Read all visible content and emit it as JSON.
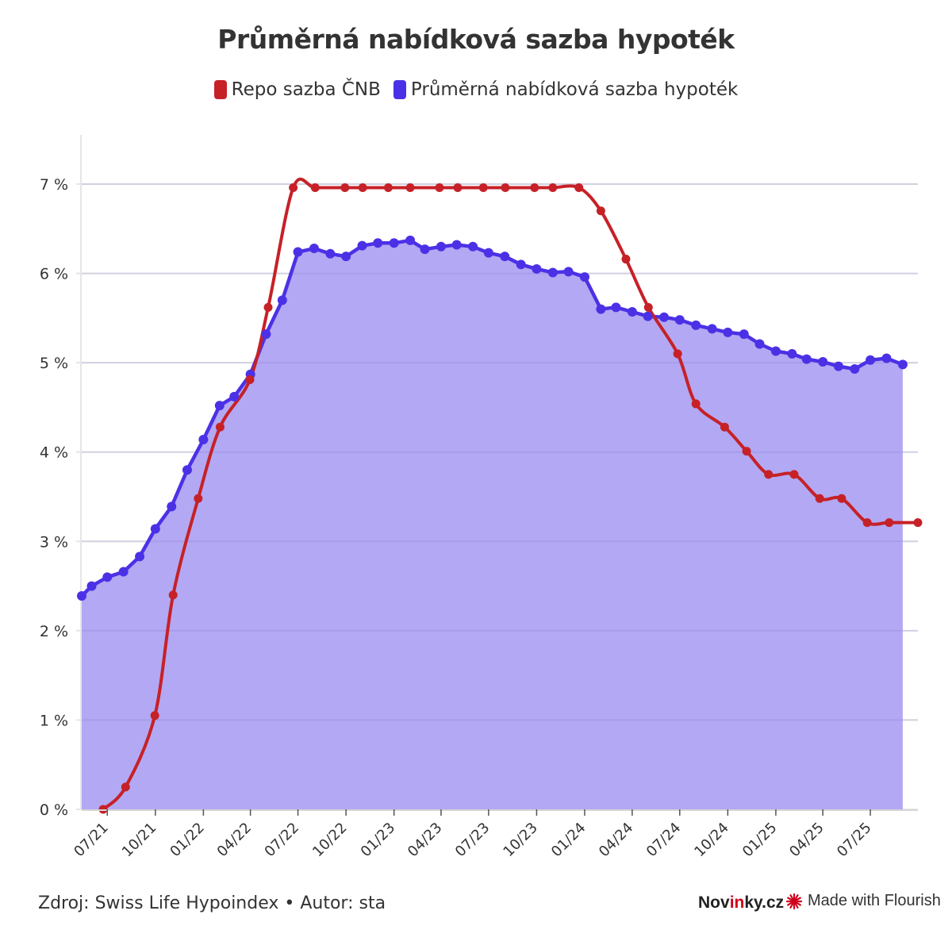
{
  "header": {
    "title": "Průměrná nabídková sazba hypoték"
  },
  "legend": {
    "items": [
      {
        "label": "Repo sazba ČNB",
        "color": "#c62127"
      },
      {
        "label": "Průměrná nabídková sazba hypoték",
        "color": "#4b31e6"
      }
    ]
  },
  "footer": {
    "source": "Zdroj: Swiss Life Hypoindex • Autor: sta",
    "brand_prefix": "Nov",
    "brand_accent": "in",
    "brand_suffix": "ky.cz",
    "made_with": "Made with Flourish"
  },
  "colors": {
    "repo": "#c62127",
    "mortgage_line": "#4b31e6",
    "mortgage_fill": "#b3a8f3",
    "flourish": "#d0021b"
  },
  "chart_data": {
    "type": "line",
    "title": "Průměrná nabídková sazba hypoték",
    "xlabel": "",
    "ylabel": "",
    "ylim": [
      0,
      7
    ],
    "yticks": [
      "0 %",
      "1 %",
      "2 %",
      "3 %",
      "4 %",
      "5 %",
      "6 %",
      "7 %"
    ],
    "x_range": [
      "2021-05-13",
      "2025-09-30"
    ],
    "xticks": [
      {
        "date": "2021-07-01",
        "label": "07/21"
      },
      {
        "date": "2021-10-01",
        "label": "10/21"
      },
      {
        "date": "2022-01-01",
        "label": "01/22"
      },
      {
        "date": "2022-04-01",
        "label": "04/22"
      },
      {
        "date": "2022-07-01",
        "label": "07/22"
      },
      {
        "date": "2022-10-01",
        "label": "10/22"
      },
      {
        "date": "2023-01-01",
        "label": "01/23"
      },
      {
        "date": "2023-04-01",
        "label": "04/23"
      },
      {
        "date": "2023-07-01",
        "label": "07/23"
      },
      {
        "date": "2023-10-01",
        "label": "10/23"
      },
      {
        "date": "2024-01-01",
        "label": "01/24"
      },
      {
        "date": "2024-04-01",
        "label": "04/24"
      },
      {
        "date": "2024-07-01",
        "label": "07/24"
      },
      {
        "date": "2024-10-01",
        "label": "10/24"
      },
      {
        "date": "2025-01-01",
        "label": "01/25"
      },
      {
        "date": "2025-04-01",
        "label": "04/25"
      },
      {
        "date": "2025-07-01",
        "label": "07/25"
      }
    ],
    "grid": true,
    "legend_position": "top-center",
    "series": [
      {
        "name": "Repo sazba ČNB",
        "type": "line",
        "points": [
          [
            "2021-06-23",
            0.0
          ],
          [
            "2021-08-05",
            0.25
          ],
          [
            "2021-09-30",
            1.05
          ],
          [
            "2021-11-04",
            2.4
          ],
          [
            "2021-12-22",
            3.48
          ],
          [
            "2022-02-02",
            4.28
          ],
          [
            "2022-03-31",
            4.81
          ],
          [
            "2022-05-05",
            5.62
          ],
          [
            "2022-06-22",
            6.96
          ],
          [
            "2022-08-03",
            6.96
          ],
          [
            "2022-09-29",
            6.96
          ],
          [
            "2022-11-02",
            6.96
          ],
          [
            "2022-12-21",
            6.96
          ],
          [
            "2023-02-01",
            6.96
          ],
          [
            "2023-03-29",
            6.96
          ],
          [
            "2023-05-03",
            6.96
          ],
          [
            "2023-06-21",
            6.96
          ],
          [
            "2023-08-02",
            6.96
          ],
          [
            "2023-09-27",
            6.96
          ],
          [
            "2023-11-01",
            6.96
          ],
          [
            "2023-12-21",
            6.96
          ],
          [
            "2024-02-01",
            6.7
          ],
          [
            "2024-03-20",
            6.16
          ],
          [
            "2024-05-02",
            5.62
          ],
          [
            "2024-06-27",
            5.1
          ],
          [
            "2024-08-01",
            4.54
          ],
          [
            "2024-09-25",
            4.28
          ],
          [
            "2024-11-06",
            4.01
          ],
          [
            "2024-12-18",
            3.75
          ],
          [
            "2025-02-05",
            3.75
          ],
          [
            "2025-03-26",
            3.48
          ],
          [
            "2025-05-07",
            3.48
          ],
          [
            "2025-06-25",
            3.21
          ],
          [
            "2025-08-06",
            3.21
          ],
          [
            "2025-09-30",
            3.21
          ]
        ]
      },
      {
        "name": "Průměrná nabídková sazba hypoték",
        "type": "area",
        "points": [
          [
            "2021-05-13",
            2.39
          ],
          [
            "2021-06-01",
            2.5
          ],
          [
            "2021-07-01",
            2.6
          ],
          [
            "2021-08-01",
            2.66
          ],
          [
            "2021-09-01",
            2.83
          ],
          [
            "2021-10-01",
            3.14
          ],
          [
            "2021-11-01",
            3.39
          ],
          [
            "2021-12-01",
            3.8
          ],
          [
            "2022-01-01",
            4.14
          ],
          [
            "2022-02-01",
            4.52
          ],
          [
            "2022-03-01",
            4.62
          ],
          [
            "2022-04-01",
            4.87
          ],
          [
            "2022-05-01",
            5.32
          ],
          [
            "2022-06-01",
            5.7
          ],
          [
            "2022-07-01",
            6.24
          ],
          [
            "2022-08-01",
            6.28
          ],
          [
            "2022-09-01",
            6.22
          ],
          [
            "2022-10-01",
            6.19
          ],
          [
            "2022-11-01",
            6.31
          ],
          [
            "2022-12-01",
            6.34
          ],
          [
            "2023-01-01",
            6.34
          ],
          [
            "2023-02-01",
            6.37
          ],
          [
            "2023-03-01",
            6.27
          ],
          [
            "2023-04-01",
            6.3
          ],
          [
            "2023-05-01",
            6.32
          ],
          [
            "2023-06-01",
            6.3
          ],
          [
            "2023-07-01",
            6.23
          ],
          [
            "2023-08-01",
            6.19
          ],
          [
            "2023-09-01",
            6.1
          ],
          [
            "2023-10-01",
            6.05
          ],
          [
            "2023-11-01",
            6.01
          ],
          [
            "2023-12-01",
            6.02
          ],
          [
            "2024-01-01",
            5.96
          ],
          [
            "2024-02-01",
            5.6
          ],
          [
            "2024-03-01",
            5.62
          ],
          [
            "2024-04-01",
            5.57
          ],
          [
            "2024-05-01",
            5.52
          ],
          [
            "2024-06-01",
            5.51
          ],
          [
            "2024-07-01",
            5.48
          ],
          [
            "2024-08-01",
            5.42
          ],
          [
            "2024-09-01",
            5.38
          ],
          [
            "2024-10-01",
            5.34
          ],
          [
            "2024-11-01",
            5.32
          ],
          [
            "2024-12-01",
            5.21
          ],
          [
            "2025-01-01",
            5.13
          ],
          [
            "2025-02-01",
            5.1
          ],
          [
            "2025-03-01",
            5.04
          ],
          [
            "2025-04-01",
            5.01
          ],
          [
            "2025-05-01",
            4.96
          ],
          [
            "2025-06-01",
            4.93
          ],
          [
            "2025-07-01",
            5.03
          ],
          [
            "2025-08-01",
            5.05
          ],
          [
            "2025-09-01",
            4.98
          ]
        ]
      }
    ]
  }
}
